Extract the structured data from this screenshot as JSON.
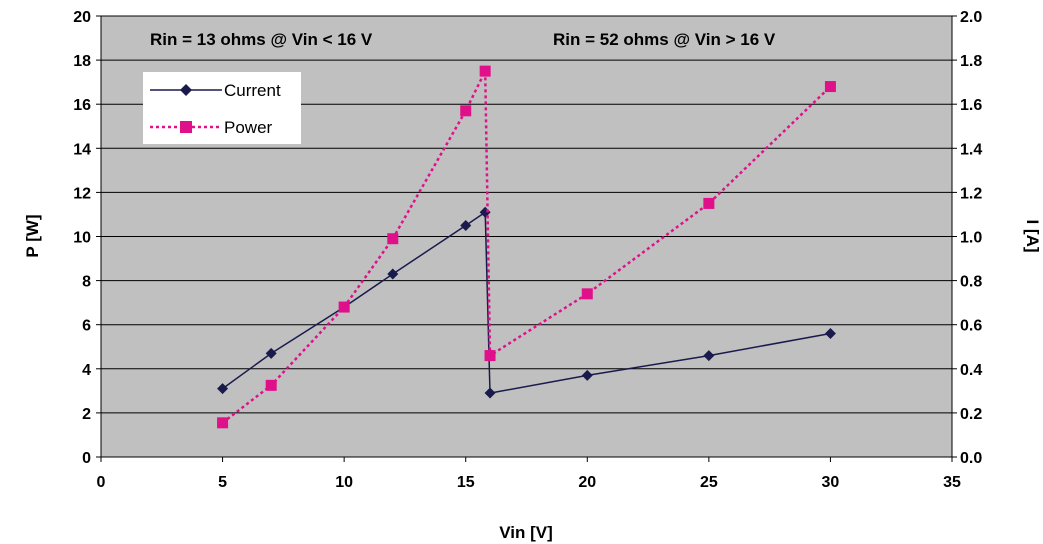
{
  "chart_data": {
    "type": "line",
    "xlabel": "Vin [V]",
    "ylabel": "P [W]",
    "y2label": "I [A]",
    "xlim": [
      0,
      35
    ],
    "xticks": [
      "0",
      "5",
      "10",
      "15",
      "20",
      "25",
      "30",
      "35"
    ],
    "ylim": [
      0,
      20
    ],
    "yticks": [
      "0",
      "2",
      "4",
      "6",
      "8",
      "10",
      "12",
      "14",
      "16",
      "18",
      "20"
    ],
    "y2lim": [
      0,
      2.0
    ],
    "y2ticks": [
      "0.0",
      "0.2",
      "0.4",
      "0.6",
      "0.8",
      "1.0",
      "1.2",
      "1.4",
      "1.6",
      "1.8",
      "2.0"
    ],
    "grid": true,
    "plot_background": "#c0c0c0",
    "legend_placement": "top-left",
    "annotations": [
      "Rin = 13 ohms @ Vin < 16 V",
      "Rin = 52 ohms @ Vin > 16 V"
    ],
    "series": [
      {
        "name": "Current",
        "axis": "right",
        "color": "#1a1a4d",
        "line_style": "solid",
        "marker": "diamond",
        "x": [
          5,
          7,
          10,
          12,
          15,
          15.8,
          16,
          20,
          25,
          30
        ],
        "values": [
          0.31,
          0.47,
          0.68,
          0.83,
          1.05,
          1.11,
          0.29,
          0.37,
          0.46,
          0.56
        ]
      },
      {
        "name": "Power",
        "axis": "left",
        "color": "#e0108a",
        "line_style": "dotted",
        "marker": "square",
        "x": [
          5,
          7,
          10,
          12,
          15,
          15.8,
          16,
          20,
          25,
          30
        ],
        "values": [
          1.55,
          3.25,
          6.8,
          9.9,
          15.7,
          17.5,
          4.6,
          7.4,
          11.5,
          16.8
        ]
      }
    ]
  }
}
